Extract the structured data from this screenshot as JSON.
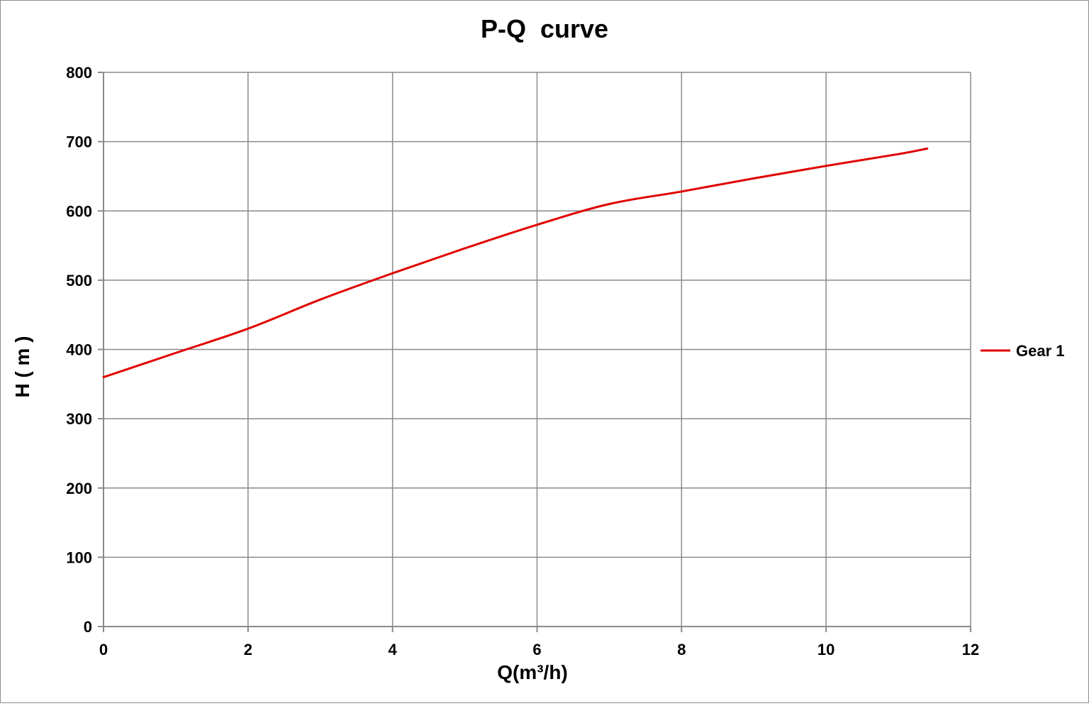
{
  "chart_data": {
    "type": "line",
    "title": "P-Q  curve",
    "xlabel": "Q(m³/h)",
    "ylabel": "H ( m )",
    "xlim": [
      0,
      12
    ],
    "ylim": [
      0,
      800
    ],
    "xticks": [
      "0",
      "2",
      "4",
      "6",
      "8",
      "10",
      "12"
    ],
    "yticks": [
      "0",
      "100",
      "200",
      "300",
      "400",
      "500",
      "600",
      "700",
      "800"
    ],
    "grid": true,
    "legend_position": "right",
    "series": [
      {
        "name": "Gear 1",
        "color": "#e00000",
        "x": [
          0,
          1,
          2,
          3,
          4,
          5,
          6,
          7,
          8,
          9,
          10,
          11,
          11.4
        ],
        "y": [
          360,
          395,
          430,
          472,
          510,
          546,
          580,
          610,
          628,
          647,
          665,
          682,
          690
        ]
      }
    ]
  }
}
